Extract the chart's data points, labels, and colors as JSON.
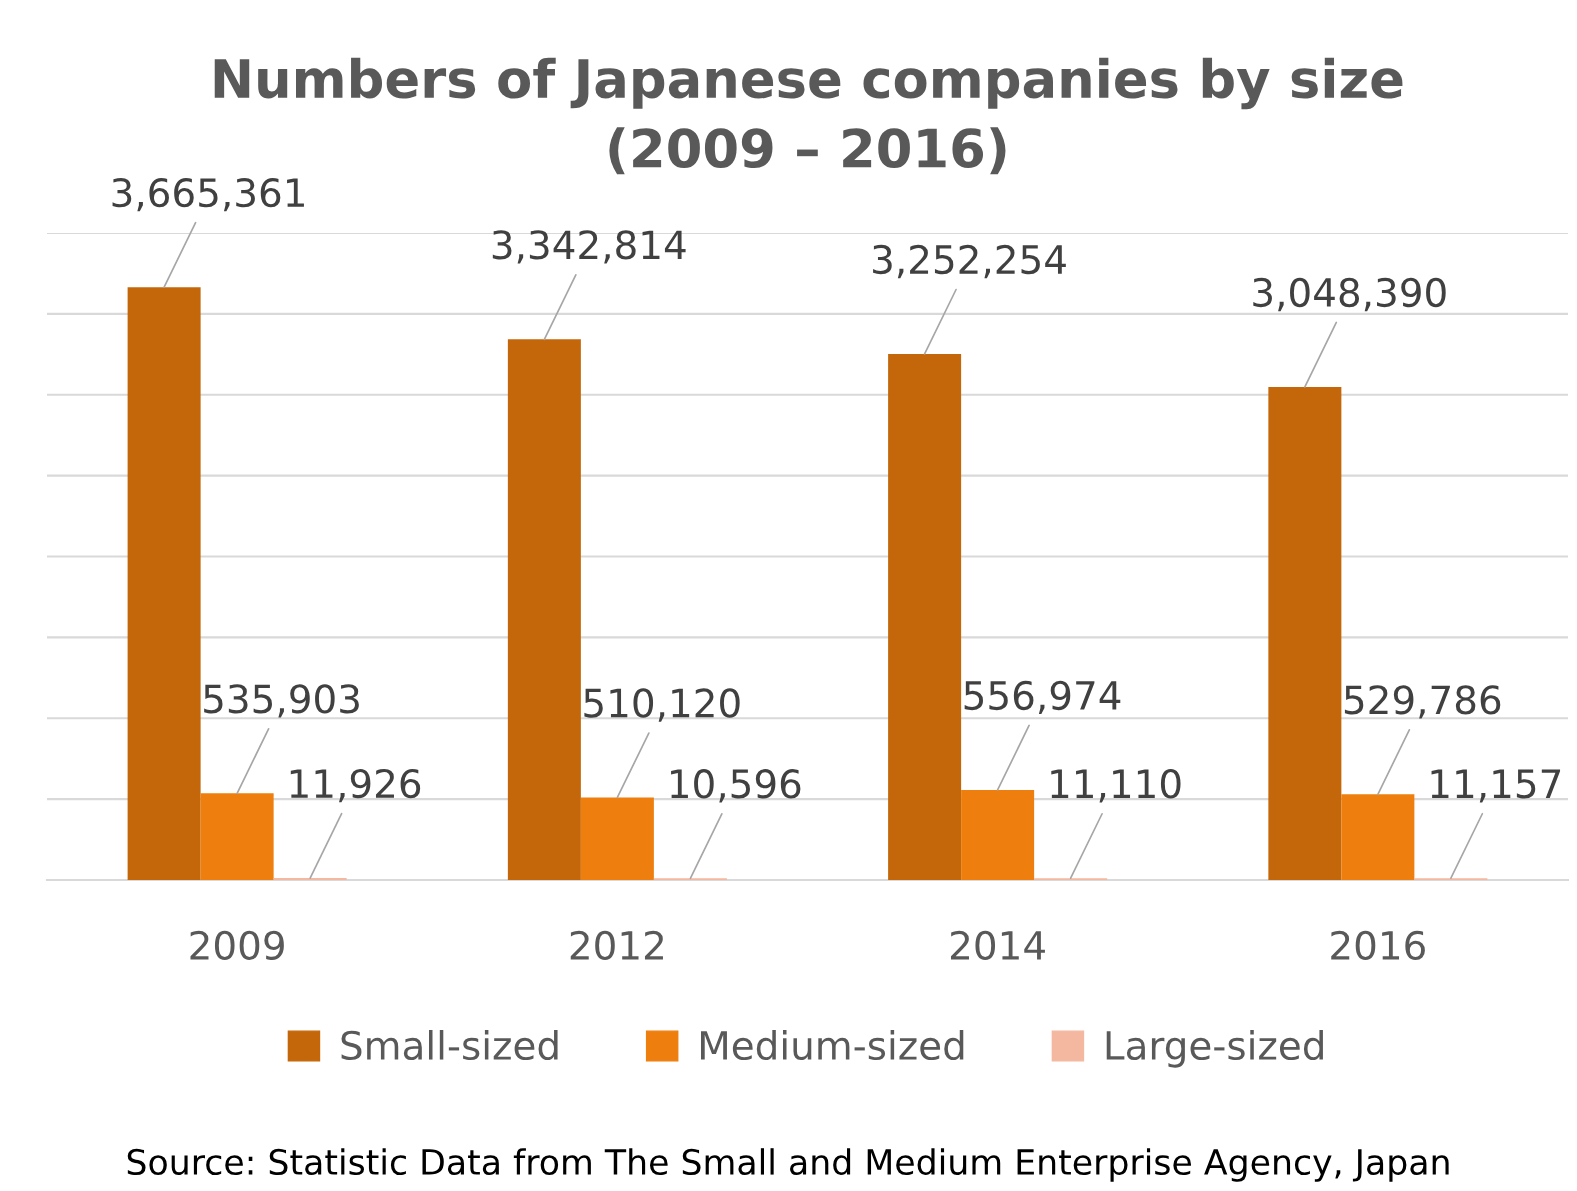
{
  "chart_data": {
    "type": "bar",
    "title": "Numbers of Japanese companies by size\n(2009 – 2016)",
    "categories": [
      "2009",
      "2012",
      "2014",
      "2016"
    ],
    "series": [
      {
        "name": "Small-sized",
        "color": "#c4670a",
        "values": [
          3665361,
          3342814,
          3252254,
          3048390
        ],
        "value_labels": [
          "3,665,361",
          "3,342,814",
          "3,252,254",
          "3,048,390"
        ]
      },
      {
        "name": "Medium-sized",
        "color": "#ee7f0e",
        "values": [
          535903,
          510120,
          556974,
          529786
        ],
        "value_labels": [
          "535,903",
          "510,120",
          "556,974",
          "529,786"
        ]
      },
      {
        "name": "Large-sized",
        "color": "#f4b8a0",
        "values": [
          11926,
          10596,
          11110,
          11157
        ],
        "value_labels": [
          "11,926",
          "10,596",
          "11,110",
          "11,157"
        ]
      }
    ],
    "grid": "y",
    "legend": "bottom",
    "tick_labels": "x",
    "annotations": [
      "Source: Statistic Data from The Small and Medium Enterprise Agency, Japan"
    ]
  }
}
